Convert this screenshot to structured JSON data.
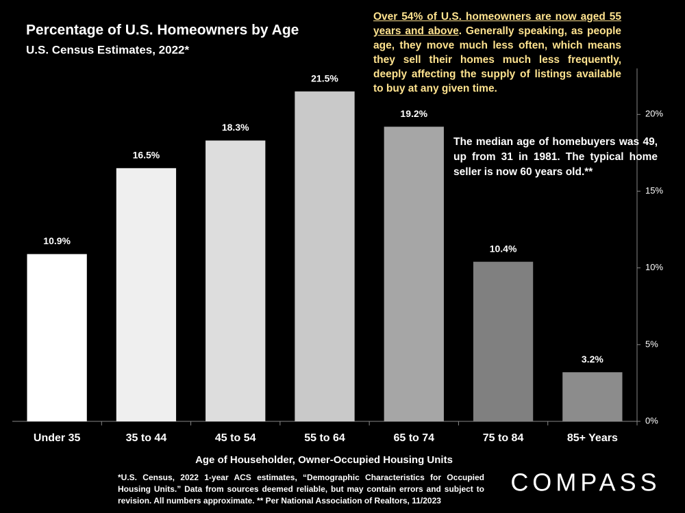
{
  "chart_data": {
    "type": "bar",
    "title": "Percentage of U.S. Homeowners by Age",
    "subtitle": "U.S. Census Estimates, 2022*",
    "x_label": "Age of Householder, Owner-Occupied Housing Units",
    "categories": [
      "Under 35",
      "35 to 44",
      "45 to 54",
      "55 to 64",
      "65 to 74",
      "75 to 84",
      "85+ Years"
    ],
    "values": [
      10.9,
      16.5,
      18.3,
      21.5,
      19.2,
      10.4,
      3.2
    ],
    "value_labels": [
      "10.9%",
      "16.5%",
      "18.3%",
      "21.5%",
      "19.2%",
      "10.4%",
      "3.2%"
    ],
    "colors": [
      "#ffffff",
      "#efefef",
      "#dddddd",
      "#c9c9c9",
      "#a6a6a6",
      "#808080",
      "#8c8c8c"
    ],
    "ylim": [
      0,
      23
    ],
    "yticks": [
      {
        "value": 0,
        "label": "0%"
      },
      {
        "value": 5,
        "label": "5%"
      },
      {
        "value": 10,
        "label": "10%"
      },
      {
        "value": 15,
        "label": "15%"
      },
      {
        "value": 20,
        "label": "20%"
      }
    ],
    "y_axis_side": "right",
    "annotation_1": {
      "underlined": "Over 54% of U.S. homeowners are now aged 55 years and above",
      "text": ". Generally speaking, as people age, they move much less often, which means they sell their homes much less frequently, deeply affecting the supply of listings available to buy at any given time."
    },
    "annotation_2": "The median age of  homebuyers was 49, up from 31 in 1981. The typical home seller is now 60 years old.**",
    "footnote": "*U.S. Census, 2022 1-year ACS estimates, “Demographic Characteristics for Occupied Housing Units.” Data from sources deemed reliable, but may contain errors and subject to revision. All numbers approximate. ** Per National Association of Realtors, 11/2023",
    "logo": "COMPASS"
  }
}
